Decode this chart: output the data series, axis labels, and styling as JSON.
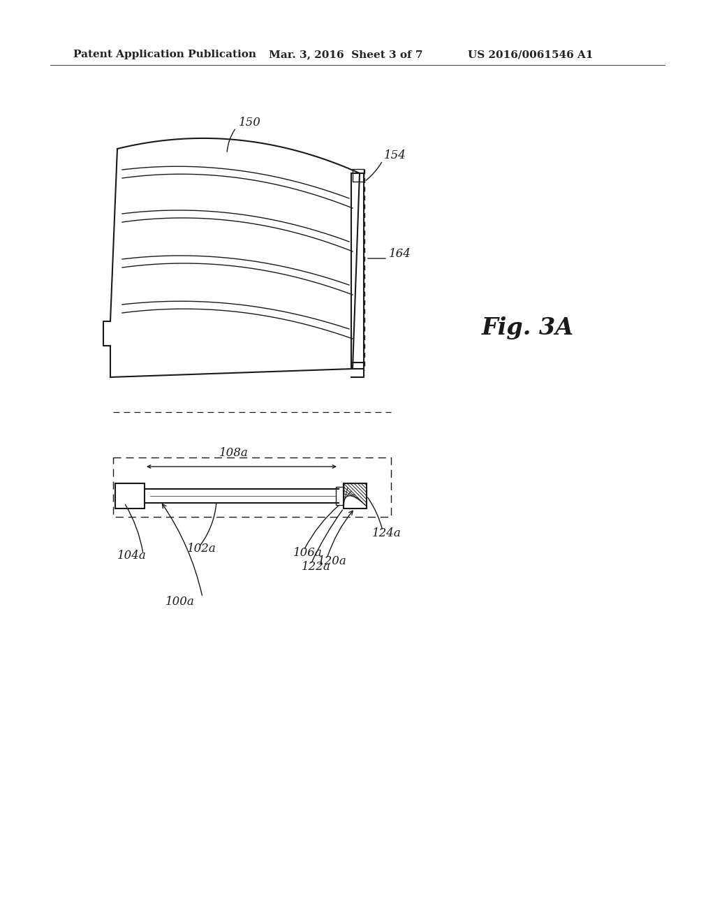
{
  "bg_color": "#ffffff",
  "header_left": "Patent Application Publication",
  "header_mid": "Mar. 3, 2016  Sheet 3 of 7",
  "header_right": "US 2016/0061546 A1",
  "fig_label": "Fig. 3A",
  "label_150": "150",
  "label_154": "154",
  "label_164": "164",
  "label_100a": "100a",
  "label_102a": "102a",
  "label_104a": "104a",
  "label_106a": "106a",
  "label_108a": "108a",
  "label_120a": "120a",
  "label_122a": "122a",
  "label_124a": "124a"
}
